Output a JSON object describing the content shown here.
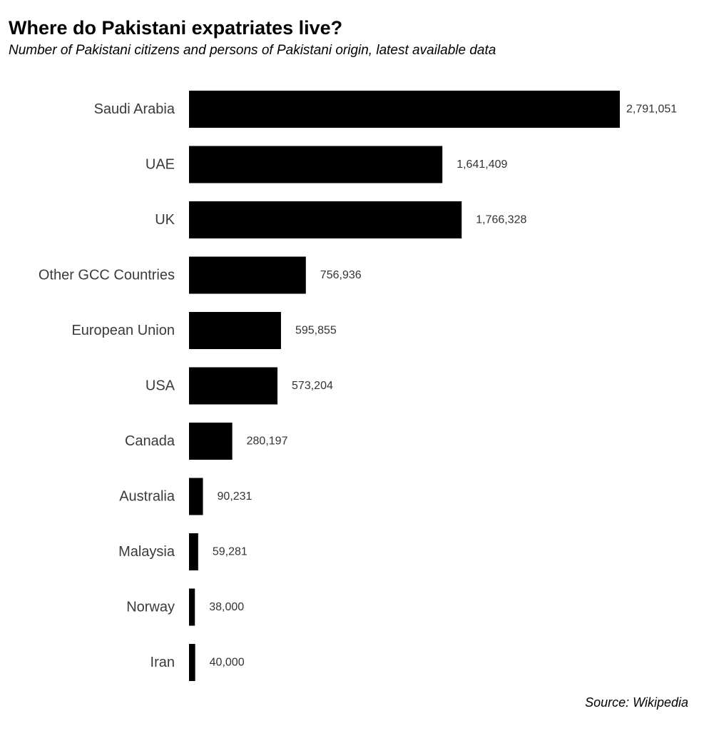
{
  "chart_data": {
    "type": "bar",
    "orientation": "horizontal",
    "title": "Where do Pakistani expatriates live?",
    "subtitle": "Number of Pakistani citizens and persons of Pakistani origin, latest available data",
    "source": "Source: Wikipedia",
    "categories": [
      "Saudi Arabia",
      "UAE",
      "UK",
      "Other GCC Countries",
      "European Union",
      "USA",
      "Canada",
      "Australia",
      "Malaysia",
      "Norway",
      "Iran"
    ],
    "values": [
      2791051,
      1641409,
      1766328,
      756936,
      595855,
      573204,
      280197,
      90231,
      59281,
      38000,
      40000
    ],
    "value_labels": [
      "2,791,051",
      "1,641,409",
      "1,766,328",
      "756,936",
      "595,855",
      "573,204",
      "280,197",
      "90,231",
      "59,281",
      "38,000",
      "40,000"
    ],
    "bar_color": "#000000",
    "grid": false,
    "legend": "none"
  }
}
